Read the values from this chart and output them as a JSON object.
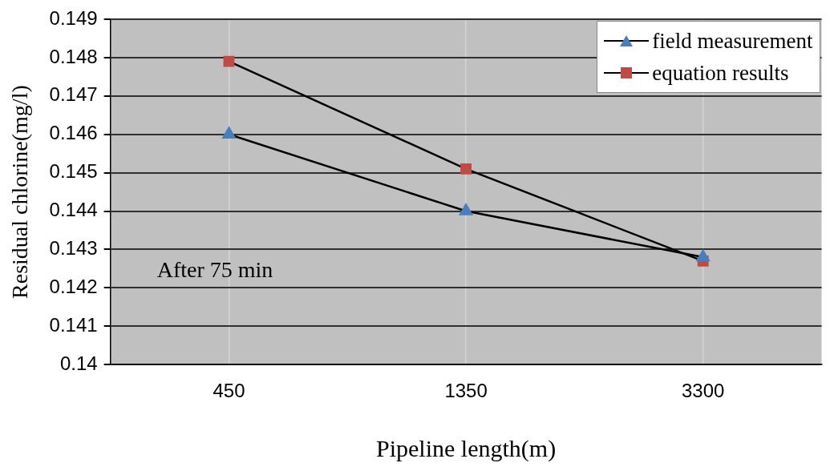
{
  "chart_data": {
    "type": "line",
    "xlabel": "Pipeline length(m)",
    "ylabel": "Residual chlorine(mg/l)",
    "categories": [
      "450",
      "1350",
      "3300"
    ],
    "series": [
      {
        "name": "field measurement",
        "color": "#4a7ebb",
        "marker": "triangle",
        "values": [
          0.146,
          0.144,
          0.1428
        ]
      },
      {
        "name": "equation results",
        "color": "#be4b48",
        "marker": "square",
        "values": [
          0.1479,
          0.1451,
          0.1427
        ]
      }
    ],
    "ylim": [
      0.14,
      0.149
    ],
    "yticks": [
      0.14,
      0.141,
      0.142,
      0.143,
      0.144,
      0.145,
      0.146,
      0.147,
      0.148,
      0.149
    ],
    "grid": true,
    "legend": "top right",
    "annotations": [
      "After 75 min"
    ]
  }
}
